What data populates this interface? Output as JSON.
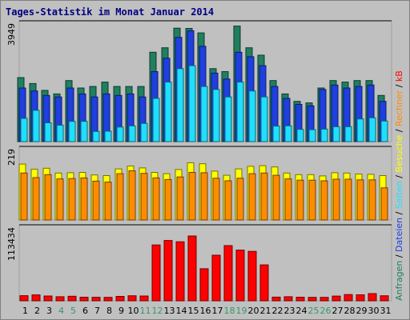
{
  "chart_data": {
    "type": "bar",
    "title": "Tages-Statistik im Monat Januar 2014",
    "categories": [
      "1",
      "2",
      "3",
      "4",
      "5",
      "6",
      "7",
      "8",
      "9",
      "10",
      "11",
      "12",
      "13",
      "14",
      "15",
      "16",
      "17",
      "18",
      "19",
      "20",
      "21",
      "22",
      "23",
      "24",
      "25",
      "26",
      "27",
      "28",
      "29",
      "30",
      "31"
    ],
    "weekend_days": [
      "4",
      "5",
      "11",
      "12",
      "18",
      "19",
      "25",
      "26"
    ],
    "colors": {
      "weekday_tick": "#000000",
      "weekend_tick": "#339966",
      "anfragen": "#1f7f5f",
      "dateien": "#1f3fdf",
      "seiten": "#1fdfff",
      "besuche": "#ffff00",
      "rechner": "#ff8c00",
      "kb": "#ff0000",
      "separator": "#000000"
    },
    "panels": [
      {
        "ymax_label": "3949",
        "ymax": 3949,
        "series": [
          {
            "name": "Anfragen",
            "color_key": "anfragen",
            "values": [
              2150,
              1950,
              1720,
              1600,
              2050,
              1800,
              1850,
              2000,
              1850,
              1850,
              1850,
              3000,
              3150,
              3810,
              3800,
              3650,
              2450,
              2350,
              3880,
              3150,
              2900,
              2050,
              1600,
              1350,
              1300,
              1800,
              2050,
              2000,
              2050,
              2050,
              1550
            ]
          },
          {
            "name": "Dateien",
            "color_key": "dateien",
            "values": [
              1800,
              1700,
              1550,
              1500,
              1800,
              1600,
              1500,
              1600,
              1550,
              1600,
              1500,
              2350,
              2800,
              3500,
              3720,
              3200,
              2300,
              2100,
              3000,
              2850,
              2550,
              1850,
              1450,
              1250,
              1200,
              1750,
              1900,
              1800,
              1850,
              1900,
              1350
            ]
          },
          {
            "name": "Seiten",
            "color_key": "seiten",
            "values": [
              780,
              1050,
              630,
              550,
              680,
              680,
              340,
              350,
              490,
              530,
              610,
              1450,
              2000,
              2450,
              2550,
              1850,
              1750,
              1500,
              2000,
              1700,
              1500,
              520,
              530,
              410,
              400,
              420,
              500,
              500,
              760,
              800,
              690
            ]
          }
        ],
        "legend": [
          "Anfragen",
          "Dateien"
        ]
      },
      {
        "ymax_label": "219",
        "ymax": 219,
        "series": [
          {
            "name": "Besuche",
            "color_key": "besuche",
            "values": [
              174,
              158,
              161,
              146,
              147,
              148,
              140,
              138,
              159,
              168,
              162,
              148,
              144,
              157,
              178,
              175,
              152,
              139,
              159,
              167,
              169,
              165,
              146,
              141,
              141,
              137,
              147,
              146,
              143,
              142,
              138
            ]
          },
          {
            "name": "Rechner",
            "color_key": "rechner",
            "values": [
              146,
              132,
              141,
              128,
              129,
              131,
              121,
              118,
              144,
              153,
              145,
              131,
              126,
              134,
              148,
              147,
              130,
              122,
              130,
              144,
              146,
              139,
              128,
              124,
              124,
              122,
              127,
              127,
              125,
              125,
              100
            ]
          }
        ],
        "legend": [
          "Besuche",
          "Seiten"
        ]
      },
      {
        "ymax_label": "113434",
        "ymax": 113434,
        "series": [
          {
            "name": "kB",
            "color_key": "kb",
            "values": [
              8000,
              9200,
              7500,
              6400,
              7100,
              5600,
              5500,
              5300,
              6800,
              7800,
              7500,
              87000,
              94000,
              92000,
              101000,
              50000,
              71000,
              86000,
              79000,
              77000,
              56000,
              5700,
              6400,
              5600,
              5300,
              5300,
              7300,
              9700,
              9300,
              11200,
              7800
            ]
          }
        ],
        "legend": [
          "Rechner",
          "kB"
        ]
      }
    ]
  }
}
